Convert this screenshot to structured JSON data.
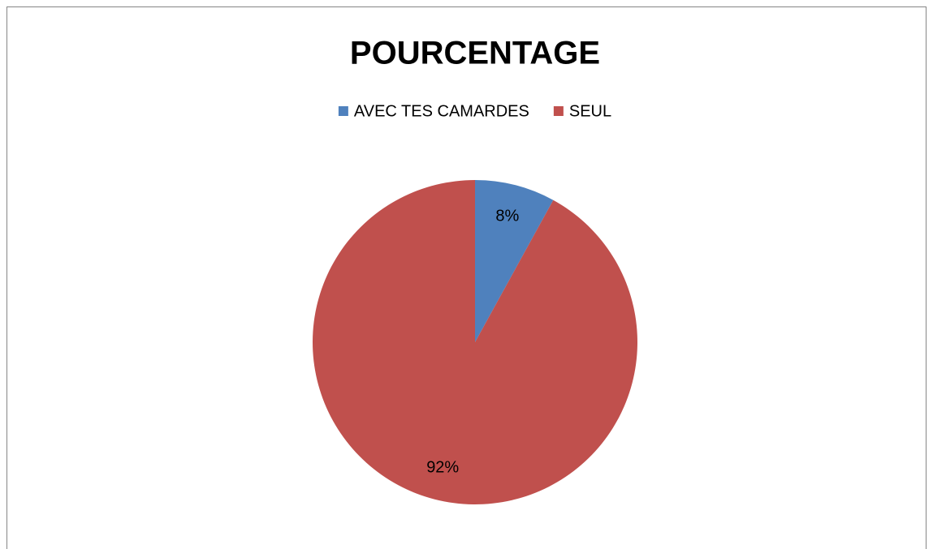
{
  "chart_data": {
    "type": "pie",
    "title": "POURCENTAGE",
    "categories": [
      "AVEC TES CAMARDES",
      "SEUL"
    ],
    "values": [
      8,
      92
    ],
    "value_labels": [
      "8%",
      "92%"
    ],
    "colors": [
      "#4f81bd",
      "#c0504d"
    ],
    "legend": "top"
  }
}
